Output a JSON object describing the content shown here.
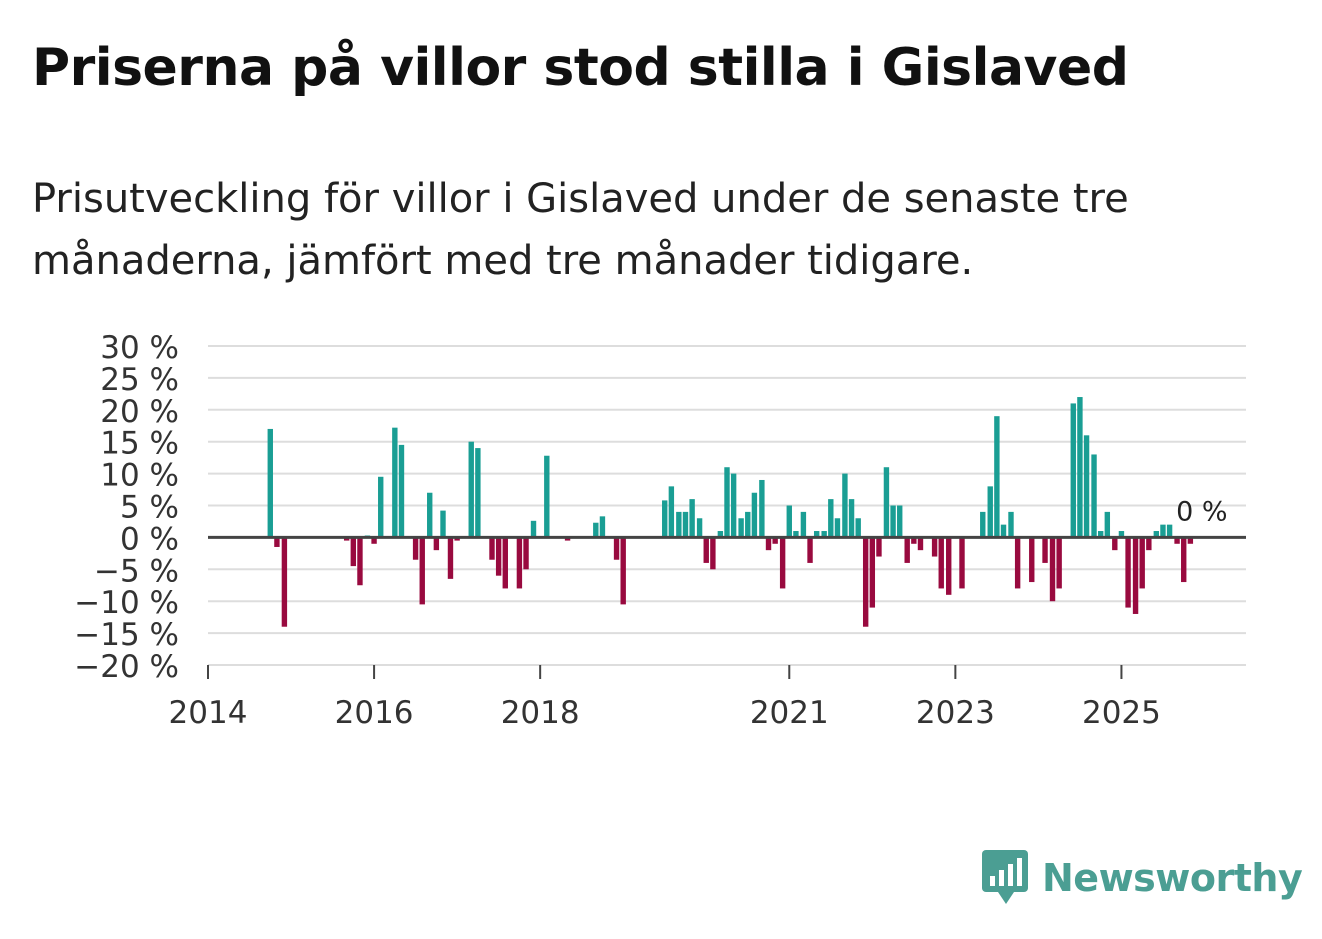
{
  "title": "Priserna på villor stod stilla i Gislaved",
  "subtitle": "Prisutveckling för villor i Gislaved under de senaste tre månaderna, jämfört med tre månader tidigare.",
  "brand": {
    "name": "Newsworthy",
    "color": "#4b9e93",
    "icon": "bar-chart-speech-bubble-icon"
  },
  "colors": {
    "positive": "#1a9e94",
    "negative": "#990a3f",
    "grid": "#dddddd",
    "zero_line": "#444444",
    "axis_text": "#333333"
  },
  "chart_data": {
    "type": "bar",
    "title": "Priserna på villor stod stilla i Gislaved",
    "xlabel": "",
    "ylabel": "",
    "ylim": [
      -20,
      30
    ],
    "xlim": [
      2014.0,
      2026.5
    ],
    "y_ticks": [
      30,
      25,
      20,
      15,
      10,
      5,
      0,
      -5,
      -10,
      -15,
      -20
    ],
    "y_tick_labels": [
      "30 %",
      "25 %",
      "20 %",
      "15 %",
      "10 %",
      "5 %",
      "0 %",
      "−5 %",
      "−10 %",
      "−15 %",
      "−20 %"
    ],
    "x_ticks": [
      2014,
      2016,
      2018,
      2021,
      2023,
      2025
    ],
    "x_tick_labels": [
      "2014",
      "2016",
      "2018",
      "2021",
      "2023",
      "2025"
    ],
    "grid": true,
    "last_value_label": "0 %",
    "points": [
      [
        2014.75,
        17
      ],
      [
        2014.83,
        -1.5
      ],
      [
        2014.92,
        -14
      ],
      [
        2015.67,
        -0.5
      ],
      [
        2015.75,
        -4.5
      ],
      [
        2015.83,
        -7.5
      ],
      [
        2015.92,
        0.3
      ],
      [
        2016.0,
        -1
      ],
      [
        2016.08,
        9.5
      ],
      [
        2016.25,
        17.2
      ],
      [
        2016.33,
        14.5
      ],
      [
        2016.5,
        -3.5
      ],
      [
        2016.58,
        -10.5
      ],
      [
        2016.67,
        7
      ],
      [
        2016.75,
        -2
      ],
      [
        2016.83,
        4.2
      ],
      [
        2016.92,
        -6.5
      ],
      [
        2017.0,
        -0.5
      ],
      [
        2017.17,
        15
      ],
      [
        2017.25,
        14
      ],
      [
        2017.42,
        -3.5
      ],
      [
        2017.5,
        -6
      ],
      [
        2017.58,
        -8
      ],
      [
        2017.75,
        -8
      ],
      [
        2017.83,
        -5
      ],
      [
        2017.92,
        2.6
      ],
      [
        2018.08,
        12.8
      ],
      [
        2018.33,
        -0.5
      ],
      [
        2018.67,
        2.3
      ],
      [
        2018.75,
        3.3
      ],
      [
        2018.92,
        -3.5
      ],
      [
        2019.0,
        -10.5
      ],
      [
        2019.5,
        5.8
      ],
      [
        2019.58,
        8
      ],
      [
        2019.67,
        4
      ],
      [
        2019.75,
        4
      ],
      [
        2019.83,
        6
      ],
      [
        2019.92,
        3
      ],
      [
        2020.0,
        -4
      ],
      [
        2020.08,
        -5
      ],
      [
        2020.17,
        1
      ],
      [
        2020.25,
        11
      ],
      [
        2020.33,
        10
      ],
      [
        2020.42,
        3
      ],
      [
        2020.5,
        4
      ],
      [
        2020.58,
        7
      ],
      [
        2020.67,
        9
      ],
      [
        2020.75,
        -2
      ],
      [
        2020.83,
        -1
      ],
      [
        2020.92,
        -8
      ],
      [
        2021.0,
        5
      ],
      [
        2021.08,
        1
      ],
      [
        2021.17,
        4
      ],
      [
        2021.25,
        -4
      ],
      [
        2021.33,
        1
      ],
      [
        2021.42,
        1
      ],
      [
        2021.5,
        6
      ],
      [
        2021.58,
        3
      ],
      [
        2021.67,
        10
      ],
      [
        2021.75,
        6
      ],
      [
        2021.83,
        3
      ],
      [
        2021.92,
        -14
      ],
      [
        2022.0,
        -11
      ],
      [
        2022.08,
        -3
      ],
      [
        2022.17,
        11
      ],
      [
        2022.25,
        5
      ],
      [
        2022.33,
        5
      ],
      [
        2022.42,
        -4
      ],
      [
        2022.5,
        -1
      ],
      [
        2022.58,
        -2
      ],
      [
        2022.75,
        -3
      ],
      [
        2022.83,
        -8
      ],
      [
        2022.92,
        -9
      ],
      [
        2023.08,
        -8
      ],
      [
        2023.33,
        4
      ],
      [
        2023.42,
        8
      ],
      [
        2023.5,
        19
      ],
      [
        2023.58,
        2
      ],
      [
        2023.67,
        4
      ],
      [
        2023.75,
        -8
      ],
      [
        2023.92,
        -7
      ],
      [
        2024.08,
        -4
      ],
      [
        2024.17,
        -10
      ],
      [
        2024.25,
        -8
      ],
      [
        2024.42,
        21
      ],
      [
        2024.5,
        22
      ],
      [
        2024.58,
        16
      ],
      [
        2024.67,
        13
      ],
      [
        2024.75,
        1
      ],
      [
        2024.83,
        4
      ],
      [
        2024.92,
        -2
      ],
      [
        2025.0,
        1
      ],
      [
        2025.08,
        -11
      ],
      [
        2025.17,
        -12
      ],
      [
        2025.25,
        -8
      ],
      [
        2025.33,
        -2
      ],
      [
        2025.42,
        1
      ],
      [
        2025.5,
        2
      ],
      [
        2025.58,
        2
      ],
      [
        2025.67,
        -1
      ],
      [
        2025.75,
        -7
      ],
      [
        2025.83,
        -1
      ],
      [
        2025.92,
        0
      ]
    ]
  }
}
